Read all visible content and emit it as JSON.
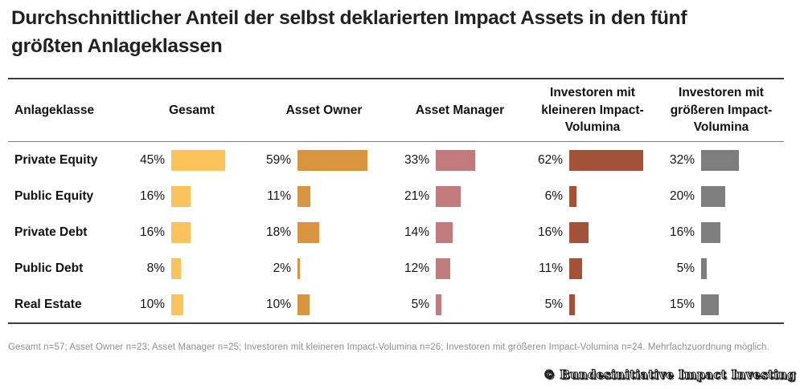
{
  "title": "Durchschnittlicher Anteil der selbst deklarierten Impact Assets in den fünf größten Anlageklassen",
  "table": {
    "columns": [
      "Anlageklasse",
      "Gesamt",
      "Asset Owner",
      "Asset Manager",
      "Investoren mit kleineren Impact-Volumina",
      "Investoren mit größeren Impact-Volumina"
    ]
  },
  "chart_data": {
    "type": "bar",
    "title": "Durchschnittlicher Anteil der selbst deklarierten Impact Assets in den fünf größten Anlageklassen",
    "categories": [
      "Private Equity",
      "Public Equity",
      "Private Debt",
      "Public Debt",
      "Real Estate"
    ],
    "series": [
      {
        "name": "Gesamt",
        "color": "#FAC35B",
        "values": [
          45,
          16,
          16,
          8,
          10
        ]
      },
      {
        "name": "Asset Owner",
        "color": "#D99440",
        "values": [
          59,
          11,
          18,
          2,
          10
        ]
      },
      {
        "name": "Asset Manager",
        "color": "#C27B7D",
        "values": [
          33,
          21,
          14,
          12,
          5
        ]
      },
      {
        "name": "Investoren mit kleineren Impact-Volumina",
        "color": "#A35139",
        "values": [
          62,
          6,
          16,
          11,
          5
        ]
      },
      {
        "name": "Investoren mit größeren Impact-Volumina",
        "color": "#7E7E7E",
        "values": [
          32,
          20,
          16,
          5,
          15
        ]
      }
    ],
    "value_format": "percent",
    "value_suffix": "%",
    "xlim": [
      0,
      100
    ],
    "grid": false,
    "legend_position": "column-headers",
    "orientation": "horizontal"
  },
  "footnote": "Gesamt n=57; Asset Owner n=23; Asset Manager n=25; Investoren mit kleineren Impact-Volumina n=26; Investoren mit größeren Impact-Volumina n=24. Mehrfachzuordnung möglich.",
  "stamp": "© Bundesinitiative Impact Investing"
}
